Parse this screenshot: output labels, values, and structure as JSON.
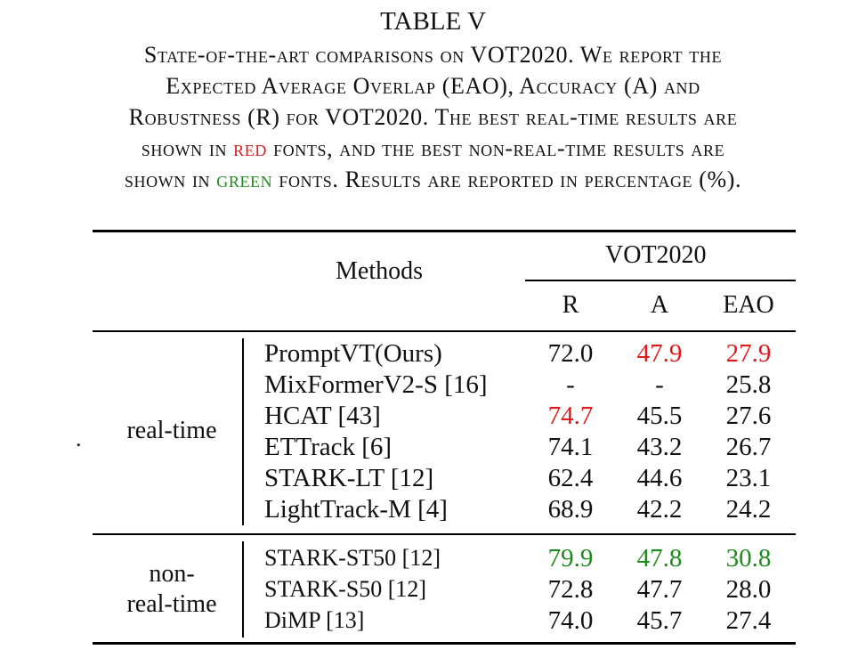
{
  "caption": {
    "table_label": "TABLE V",
    "lines": [
      {
        "parts": [
          {
            "text": "State-of-the-art comparisons on VOT2020. We report the",
            "color": ""
          }
        ]
      },
      {
        "parts": [
          {
            "text": "Expected Average Overlap (EAO), Accuracy (A) and",
            "color": ""
          }
        ]
      },
      {
        "parts": [
          {
            "text": "Robustness (R) for VOT2020. The best real-time results are",
            "color": ""
          }
        ]
      },
      {
        "parts": [
          {
            "text": "shown in ",
            "color": ""
          },
          {
            "text": "red",
            "color": "red"
          },
          {
            "text": " fonts, and the best non-real-time results are",
            "color": ""
          }
        ]
      },
      {
        "parts": [
          {
            "text": "shown in ",
            "color": ""
          },
          {
            "text": "green",
            "color": "green"
          },
          {
            "text": " fonts. Results are reported in percentage (%).",
            "color": ""
          }
        ]
      }
    ]
  },
  "colors": {
    "red": "#e0191b",
    "green": "#1e8a1e"
  },
  "table": {
    "methods_header": "Methods",
    "dataset_header": "VOT2020",
    "columns": [
      "R",
      "A",
      "EAO"
    ],
    "groups": [
      {
        "label_lines": [
          "real-time"
        ],
        "rows": [
          {
            "method": "PromptVT(Ours)",
            "R": "72.0",
            "A": "47.9",
            "EAO": "27.9",
            "highlight": {
              "A": "red",
              "EAO": "red"
            }
          },
          {
            "method": "MixFormerV2-S [16]",
            "R": "-",
            "A": "-",
            "EAO": "25.8",
            "highlight": {}
          },
          {
            "method": "HCAT [43]",
            "R": "74.7",
            "A": "45.5",
            "EAO": "27.6",
            "highlight": {
              "R": "red"
            }
          },
          {
            "method": "ETTrack [6]",
            "R": "74.1",
            "A": "43.2",
            "EAO": "26.7",
            "highlight": {}
          },
          {
            "method": "STARK-LT [12]",
            "R": "62.4",
            "A": "44.6",
            "EAO": "23.1",
            "highlight": {}
          },
          {
            "method": "LightTrack-M [4]",
            "R": "68.9",
            "A": "42.2",
            "EAO": "24.2",
            "highlight": {}
          }
        ]
      },
      {
        "label_lines": [
          "non-",
          "real-time"
        ],
        "rows": [
          {
            "method": "STARK-ST50 [12]",
            "R": "79.9",
            "A": "47.8",
            "EAO": "30.8",
            "highlight": {
              "R": "green",
              "A": "green",
              "EAO": "green"
            }
          },
          {
            "method": "STARK-S50 [12]",
            "R": "72.8",
            "A": "47.7",
            "EAO": "28.0",
            "highlight": {}
          },
          {
            "method": "DiMP [13]",
            "R": "74.0",
            "A": "45.7",
            "EAO": "27.4",
            "highlight": {}
          }
        ]
      }
    ],
    "stray_mark": "."
  }
}
